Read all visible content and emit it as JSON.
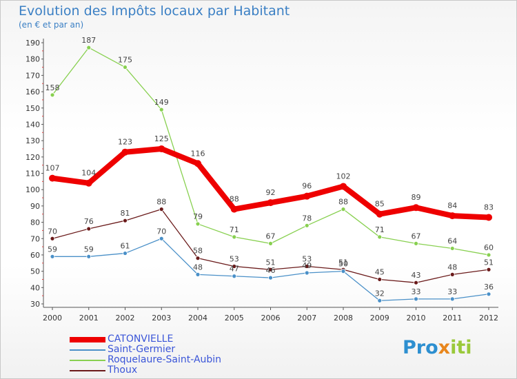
{
  "title": "Evolution des Impôts locaux par Habitant",
  "subtitle": "(en € et par an)",
  "logo": {
    "part1": "Pro",
    "part2": "x",
    "part3": "iti"
  },
  "chart_data": {
    "type": "line",
    "title": "Evolution des Impôts locaux par Habitant",
    "subtitle": "(en € et par an)",
    "xlabel": "",
    "ylabel": "",
    "x": [
      "2000",
      "2001",
      "2002",
      "2003",
      "2004",
      "2005",
      "2006",
      "2007",
      "2008",
      "2009",
      "2010",
      "2011",
      "2012"
    ],
    "ylim": [
      30,
      190
    ],
    "yticks": [
      30,
      40,
      50,
      60,
      70,
      80,
      90,
      100,
      110,
      120,
      130,
      140,
      150,
      160,
      170,
      180,
      190
    ],
    "grid": false,
    "legend_position": "bottom-left",
    "series": [
      {
        "name": "CATONVIELLE",
        "color": "#ee0000",
        "values": [
          107,
          104,
          123,
          125,
          116,
          88,
          92,
          96,
          102,
          85,
          89,
          84,
          83
        ]
      },
      {
        "name": "Saint-Germier",
        "color": "#4a90c8",
        "values": [
          59,
          59,
          61,
          70,
          48,
          47,
          46,
          49,
          50,
          32,
          33,
          33,
          36
        ]
      },
      {
        "name": "Roquelaure-Saint-Aubin",
        "color": "#88d050",
        "values": [
          158,
          187,
          175,
          149,
          79,
          71,
          67,
          78,
          88,
          71,
          67,
          64,
          60
        ]
      },
      {
        "name": "Thoux",
        "color": "#6a1a1a",
        "values": [
          70,
          76,
          81,
          88,
          58,
          53,
          51,
          53,
          51,
          45,
          43,
          48,
          51
        ]
      }
    ]
  }
}
